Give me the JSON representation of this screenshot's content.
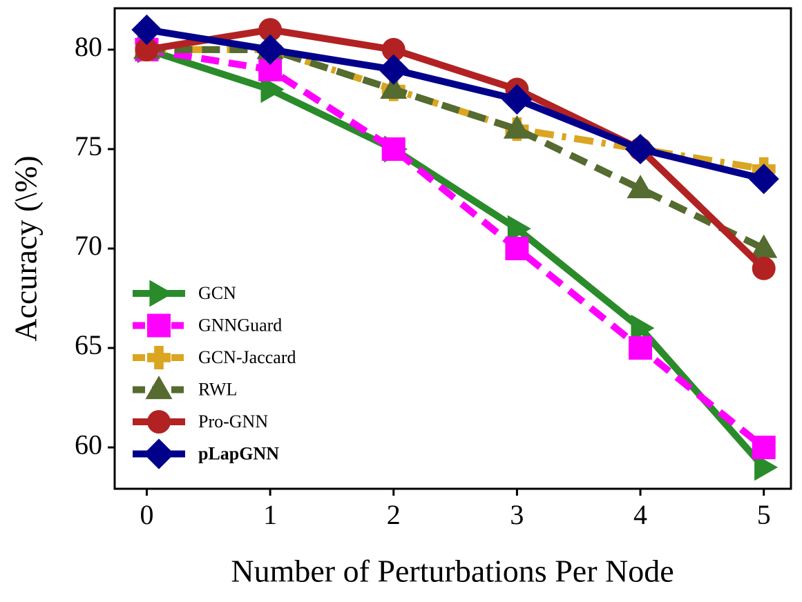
{
  "chart_data": {
    "type": "line",
    "x_label": "Number of Perturbations Per Node",
    "y_label": "Accuracy (\\%)",
    "x": [
      0,
      1,
      2,
      3,
      4,
      5
    ],
    "xlim": [
      -0.26,
      5.22
    ],
    "xticks": [
      0,
      1,
      2,
      3,
      4,
      5
    ],
    "ylim": [
      57.92,
      82.08
    ],
    "yticks": [
      60,
      65,
      70,
      75,
      80
    ],
    "legend": "lower left",
    "series": [
      {
        "name": "GCN",
        "color": "#2a8b2a",
        "marker": "triangle-right",
        "linestyle": "solid",
        "values": [
          80,
          78,
          75,
          71,
          66,
          59
        ]
      },
      {
        "name": "GNNGuard",
        "color": "#ff00ff",
        "marker": "square",
        "linestyle": "dashed",
        "values": [
          80,
          79,
          75,
          70,
          65,
          60
        ]
      },
      {
        "name": "GCN-Jaccard",
        "color": "#daa520",
        "marker": "plus",
        "linestyle": "dashdot",
        "values": [
          80,
          80,
          78,
          76,
          75,
          74
        ]
      },
      {
        "name": "RWL",
        "color": "#556b2f",
        "marker": "triangle-up",
        "linestyle": "dashed",
        "values": [
          80,
          80,
          78,
          76,
          73,
          70
        ]
      },
      {
        "name": "Pro-GNN",
        "color": "#b22222",
        "marker": "circle",
        "linestyle": "solid",
        "values": [
          80,
          81,
          80,
          78,
          75,
          69
        ]
      },
      {
        "name": "pLapGNN",
        "color": "#00008b",
        "marker": "diamond",
        "linestyle": "solid",
        "values": [
          81,
          80,
          79,
          77.5,
          75,
          73.5
        ]
      }
    ]
  }
}
